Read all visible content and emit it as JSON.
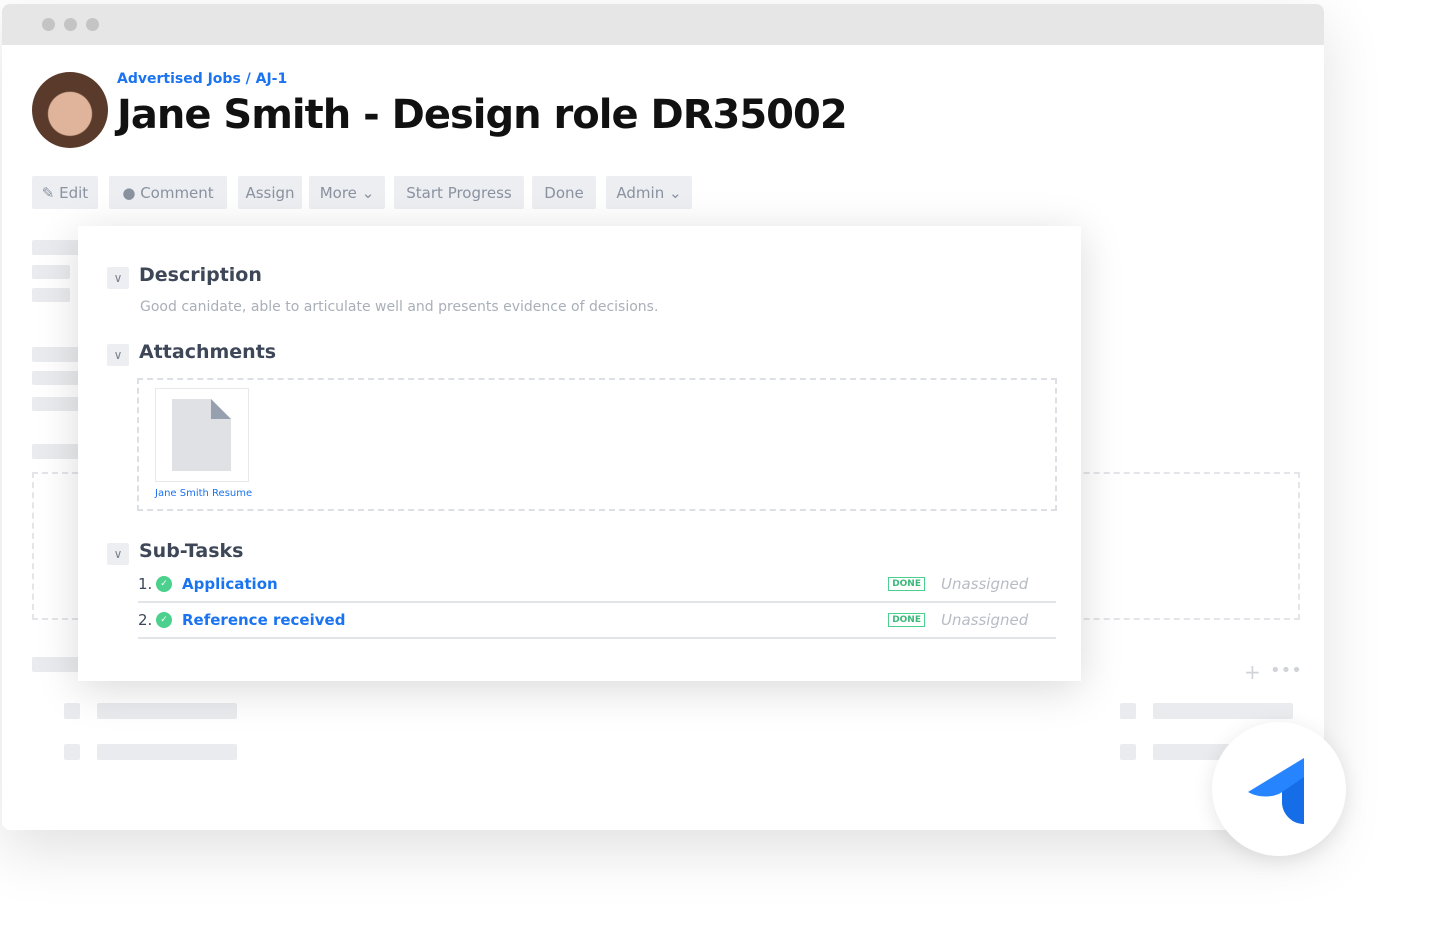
{
  "breadcrumb": "Advertised Jobs / AJ-1",
  "title": "Jane Smith - Design role DR35002",
  "toolbar": {
    "edit": "Edit",
    "comment": "Comment",
    "assign": "Assign",
    "more": "More",
    "start_progress": "Start Progress",
    "done": "Done",
    "admin": "Admin"
  },
  "description": {
    "heading": "Description",
    "text": "Good canidate, able to articulate well and presents evidence of decisions."
  },
  "attachments": {
    "heading": "Attachments",
    "files": [
      {
        "name": "Jane Smith Resume"
      }
    ]
  },
  "subtasks": {
    "heading": "Sub-Tasks",
    "items": [
      {
        "num": "1.",
        "name": "Application",
        "status": "DONE",
        "assignee": "Unassigned"
      },
      {
        "num": "2.",
        "name": "Reference received",
        "status": "DONE",
        "assignee": "Unassigned"
      }
    ]
  },
  "colors": {
    "accent": "#1a73f0",
    "done": "#4cd08e"
  }
}
